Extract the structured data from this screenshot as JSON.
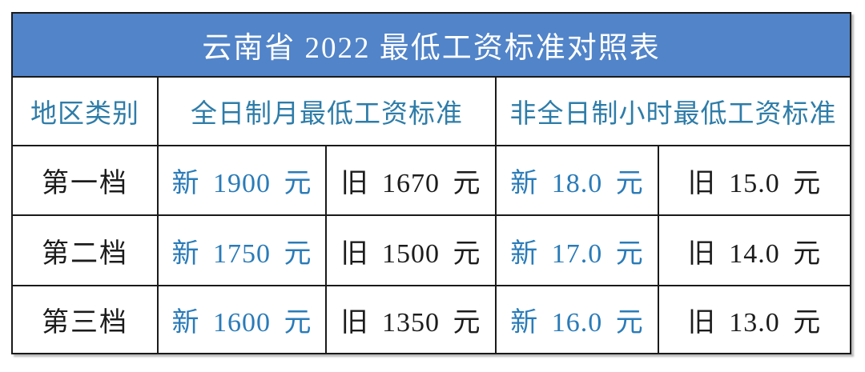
{
  "title": "云南省 2022 最低工资标准对照表",
  "colors": {
    "title_bar_bg": "#5184c9",
    "title_text": "#ffffff",
    "header_text": "#2e7ca8",
    "new_value_text": "#2a7bb8",
    "old_value_text": "#1c1c1c",
    "border": "#1a1a1a",
    "background": "#ffffff"
  },
  "table": {
    "header": {
      "col_region": "地区类别",
      "col_monthly": "全日制月最低工资标准",
      "col_hourly": "非全日制小时最低工资标准"
    },
    "rows": [
      {
        "tier": "第一档",
        "monthly_new": "新 1900 元",
        "monthly_old": "旧 1670 元",
        "hourly_new": "新 18.0 元",
        "hourly_old": "旧 15.0 元"
      },
      {
        "tier": "第二档",
        "monthly_new": "新 1750 元",
        "monthly_old": "旧 1500 元",
        "hourly_new": "新 17.0 元",
        "hourly_old": "旧 14.0 元"
      },
      {
        "tier": "第三档",
        "monthly_new": "新 1600 元",
        "monthly_old": "旧 1350 元",
        "hourly_new": "新 16.0 元",
        "hourly_old": "旧 13.0 元"
      }
    ]
  },
  "chart_data": {
    "type": "table",
    "title": "云南省 2022 最低工资标准对照表",
    "columns": [
      "地区类别",
      "全日制月最低工资标准 新",
      "全日制月最低工资标准 旧",
      "非全日制小时最低工资标准 新",
      "非全日制小时最低工资标准 旧"
    ],
    "rows": [
      [
        "第一档",
        "新 1900 元",
        "旧 1670 元",
        "新 18.0 元",
        "旧 15.0 元"
      ],
      [
        "第二档",
        "新 1750 元",
        "旧 1500 元",
        "新 17.0 元",
        "旧 14.0 元"
      ],
      [
        "第三档",
        "新 1600 元",
        "旧 1350 元",
        "新 16.0 元",
        "旧 13.0 元"
      ]
    ],
    "numeric": {
      "categories": [
        "第一档",
        "第二档",
        "第三档"
      ],
      "monthly_new_yuan": [
        1900,
        1750,
        1600
      ],
      "monthly_old_yuan": [
        1670,
        1500,
        1350
      ],
      "hourly_new_yuan": [
        18.0,
        17.0,
        16.0
      ],
      "hourly_old_yuan": [
        15.0,
        14.0,
        13.0
      ]
    }
  }
}
